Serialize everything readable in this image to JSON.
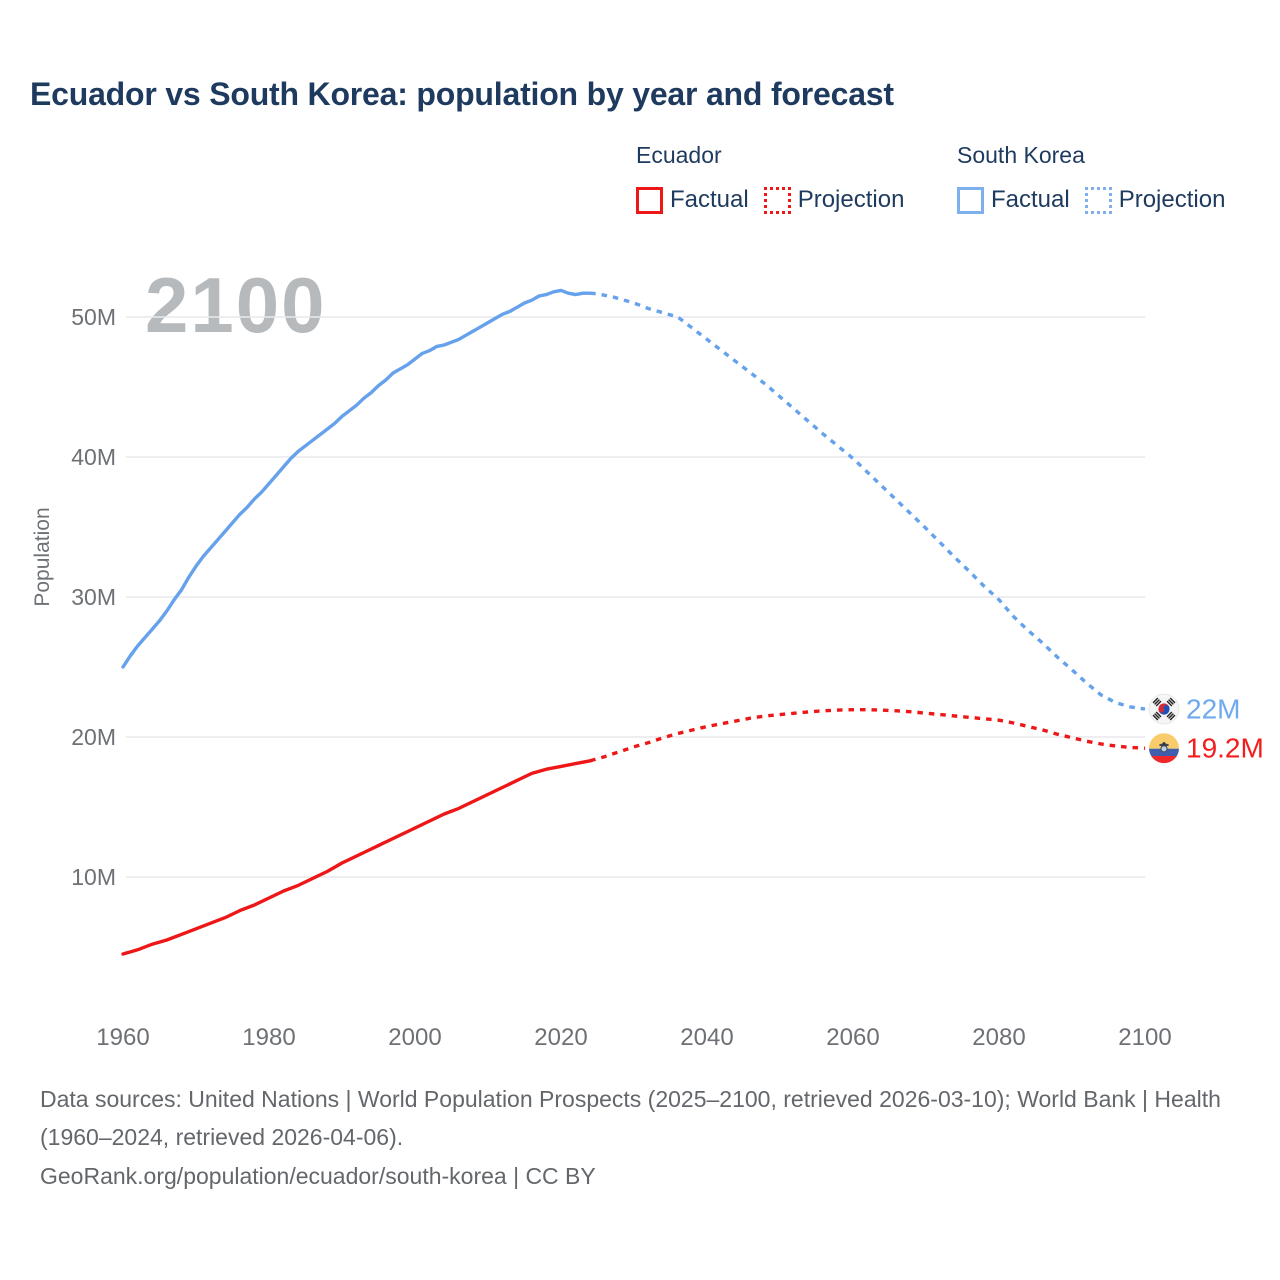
{
  "page": {
    "title": "Ecuador vs South Korea: population by year and forecast",
    "watermark": "2100"
  },
  "legend": {
    "groups": [
      {
        "name": "Ecuador",
        "color": "#ee1717",
        "items": [
          {
            "label": "Factual",
            "style": "solid"
          },
          {
            "label": "Projection",
            "style": "dotted"
          }
        ]
      },
      {
        "name": "South Korea",
        "color": "#7db0ec",
        "items": [
          {
            "label": "Factual",
            "style": "solid"
          },
          {
            "label": "Projection",
            "style": "dotted"
          }
        ]
      }
    ]
  },
  "chart_data": {
    "type": "line",
    "title": "Ecuador vs South Korea: population by year and forecast",
    "xlabel": "",
    "ylabel": "Population",
    "xlim": [
      1957,
      2114
    ],
    "ylim": [
      0,
      54
    ],
    "grid": "horizontal",
    "x_ticks": [
      1960,
      1980,
      2000,
      2020,
      2040,
      2060,
      2080,
      2100
    ],
    "y_ticks": [
      {
        "label": "10M",
        "value": 10
      },
      {
        "label": "20M",
        "value": 20
      },
      {
        "label": "30M",
        "value": 30
      },
      {
        "label": "40M",
        "value": 40
      },
      {
        "label": "50M",
        "value": 50
      }
    ],
    "colors": {
      "ecuador": "#ee1717",
      "south_korea": "#66a1ec",
      "grid": "#e9e9eb",
      "tick_text": "#6d7175",
      "end_label_blue": "#6fa9ee",
      "end_label_red": "#f21d1d"
    },
    "series": [
      {
        "name": "South Korea Factual",
        "country": "south-korea",
        "kind": "factual",
        "color": "#66a1ec",
        "dash": false,
        "points": [
          [
            1960,
            25.0
          ],
          [
            1961,
            25.8
          ],
          [
            1962,
            26.5
          ],
          [
            1963,
            27.1
          ],
          [
            1964,
            27.7
          ],
          [
            1965,
            28.3
          ],
          [
            1966,
            29.0
          ],
          [
            1967,
            29.8
          ],
          [
            1968,
            30.5
          ],
          [
            1969,
            31.4
          ],
          [
            1970,
            32.2
          ],
          [
            1971,
            32.9
          ],
          [
            1972,
            33.5
          ],
          [
            1973,
            34.1
          ],
          [
            1974,
            34.7
          ],
          [
            1975,
            35.3
          ],
          [
            1976,
            35.9
          ],
          [
            1977,
            36.4
          ],
          [
            1978,
            37.0
          ],
          [
            1979,
            37.5
          ],
          [
            1980,
            38.1
          ],
          [
            1981,
            38.7
          ],
          [
            1982,
            39.3
          ],
          [
            1983,
            39.9
          ],
          [
            1984,
            40.4
          ],
          [
            1985,
            40.8
          ],
          [
            1986,
            41.2
          ],
          [
            1987,
            41.6
          ],
          [
            1988,
            42.0
          ],
          [
            1989,
            42.4
          ],
          [
            1990,
            42.9
          ],
          [
            1991,
            43.3
          ],
          [
            1992,
            43.7
          ],
          [
            1993,
            44.2
          ],
          [
            1994,
            44.6
          ],
          [
            1995,
            45.1
          ],
          [
            1996,
            45.5
          ],
          [
            1997,
            46.0
          ],
          [
            1998,
            46.3
          ],
          [
            1999,
            46.6
          ],
          [
            2000,
            47.0
          ],
          [
            2001,
            47.4
          ],
          [
            2002,
            47.6
          ],
          [
            2003,
            47.9
          ],
          [
            2004,
            48.0
          ],
          [
            2005,
            48.2
          ],
          [
            2006,
            48.4
          ],
          [
            2007,
            48.7
          ],
          [
            2008,
            49.0
          ],
          [
            2009,
            49.3
          ],
          [
            2010,
            49.6
          ],
          [
            2011,
            49.9
          ],
          [
            2012,
            50.2
          ],
          [
            2013,
            50.4
          ],
          [
            2014,
            50.7
          ],
          [
            2015,
            51.0
          ],
          [
            2016,
            51.2
          ],
          [
            2017,
            51.5
          ],
          [
            2018,
            51.6
          ],
          [
            2019,
            51.8
          ],
          [
            2020,
            51.9
          ],
          [
            2021,
            51.7
          ],
          [
            2022,
            51.6
          ],
          [
            2023,
            51.7
          ],
          [
            2024,
            51.7
          ]
        ]
      },
      {
        "name": "South Korea Projection",
        "country": "south-korea",
        "kind": "projection",
        "color": "#66a1ec",
        "dash": true,
        "end_label": "22M",
        "end_flag": "south-korea",
        "points": [
          [
            2024,
            51.7
          ],
          [
            2025,
            51.65
          ],
          [
            2026,
            51.55
          ],
          [
            2027,
            51.45
          ],
          [
            2028,
            51.3
          ],
          [
            2029,
            51.15
          ],
          [
            2030,
            51.0
          ],
          [
            2032,
            50.6
          ],
          [
            2034,
            50.3
          ],
          [
            2036,
            50.0
          ],
          [
            2038,
            49.2
          ],
          [
            2040,
            48.4
          ],
          [
            2042,
            47.6
          ],
          [
            2044,
            46.8
          ],
          [
            2046,
            46.0
          ],
          [
            2048,
            45.2
          ],
          [
            2050,
            44.3
          ],
          [
            2052,
            43.4
          ],
          [
            2054,
            42.5
          ],
          [
            2056,
            41.6
          ],
          [
            2058,
            40.75
          ],
          [
            2060,
            39.9
          ],
          [
            2062,
            38.9
          ],
          [
            2064,
            37.9
          ],
          [
            2066,
            36.9
          ],
          [
            2068,
            35.9
          ],
          [
            2070,
            34.9
          ],
          [
            2072,
            33.85
          ],
          [
            2074,
            32.8
          ],
          [
            2076,
            31.8
          ],
          [
            2078,
            30.75
          ],
          [
            2080,
            29.8
          ],
          [
            2082,
            28.6
          ],
          [
            2084,
            27.6
          ],
          [
            2086,
            26.7
          ],
          [
            2088,
            25.7
          ],
          [
            2090,
            24.8
          ],
          [
            2092,
            23.85
          ],
          [
            2094,
            23.0
          ],
          [
            2096,
            22.45
          ],
          [
            2098,
            22.15
          ],
          [
            2100,
            22.0
          ]
        ]
      },
      {
        "name": "Ecuador Factual",
        "country": "ecuador",
        "kind": "factual",
        "color": "#ee1717",
        "dash": false,
        "points": [
          [
            1960,
            4.5
          ],
          [
            1962,
            4.8
          ],
          [
            1964,
            5.2
          ],
          [
            1966,
            5.5
          ],
          [
            1968,
            5.9
          ],
          [
            1970,
            6.3
          ],
          [
            1972,
            6.7
          ],
          [
            1974,
            7.1
          ],
          [
            1976,
            7.6
          ],
          [
            1978,
            8.0
          ],
          [
            1980,
            8.5
          ],
          [
            1982,
            9.0
          ],
          [
            1984,
            9.4
          ],
          [
            1986,
            9.9
          ],
          [
            1988,
            10.4
          ],
          [
            1990,
            11.0
          ],
          [
            1992,
            11.5
          ],
          [
            1994,
            12.0
          ],
          [
            1996,
            12.5
          ],
          [
            1998,
            13.0
          ],
          [
            2000,
            13.5
          ],
          [
            2002,
            14.0
          ],
          [
            2004,
            14.5
          ],
          [
            2006,
            14.9
          ],
          [
            2008,
            15.4
          ],
          [
            2010,
            15.9
          ],
          [
            2012,
            16.4
          ],
          [
            2014,
            16.9
          ],
          [
            2016,
            17.4
          ],
          [
            2018,
            17.7
          ],
          [
            2020,
            17.9
          ],
          [
            2022,
            18.1
          ],
          [
            2024,
            18.3
          ]
        ]
      },
      {
        "name": "Ecuador Projection",
        "country": "ecuador",
        "kind": "projection",
        "color": "#ee1717",
        "dash": true,
        "end_label": "19.2M",
        "end_flag": "ecuador",
        "points": [
          [
            2024,
            18.3
          ],
          [
            2025,
            18.45
          ],
          [
            2026,
            18.6
          ],
          [
            2028,
            18.95
          ],
          [
            2030,
            19.3
          ],
          [
            2032,
            19.6
          ],
          [
            2034,
            19.95
          ],
          [
            2036,
            20.25
          ],
          [
            2038,
            20.5
          ],
          [
            2040,
            20.75
          ],
          [
            2042,
            20.95
          ],
          [
            2044,
            21.15
          ],
          [
            2046,
            21.35
          ],
          [
            2048,
            21.5
          ],
          [
            2050,
            21.6
          ],
          [
            2052,
            21.7
          ],
          [
            2054,
            21.8
          ],
          [
            2056,
            21.87
          ],
          [
            2058,
            21.92
          ],
          [
            2060,
            21.95
          ],
          [
            2062,
            21.95
          ],
          [
            2064,
            21.92
          ],
          [
            2066,
            21.87
          ],
          [
            2068,
            21.8
          ],
          [
            2070,
            21.7
          ],
          [
            2072,
            21.6
          ],
          [
            2074,
            21.5
          ],
          [
            2076,
            21.4
          ],
          [
            2078,
            21.3
          ],
          [
            2080,
            21.2
          ],
          [
            2082,
            21.0
          ],
          [
            2084,
            20.75
          ],
          [
            2086,
            20.5
          ],
          [
            2088,
            20.2
          ],
          [
            2090,
            19.95
          ],
          [
            2092,
            19.7
          ],
          [
            2094,
            19.5
          ],
          [
            2096,
            19.36
          ],
          [
            2098,
            19.26
          ],
          [
            2100,
            19.2
          ]
        ]
      }
    ]
  },
  "footer": {
    "sources": "Data sources: United Nations | World Population Prospects (2025–2100, retrieved 2026-03-10); World Bank | Health (1960–2024, retrieved 2026-04-06).",
    "attribution": "GeoRank.org/population/ecuador/south-korea | CC BY"
  }
}
